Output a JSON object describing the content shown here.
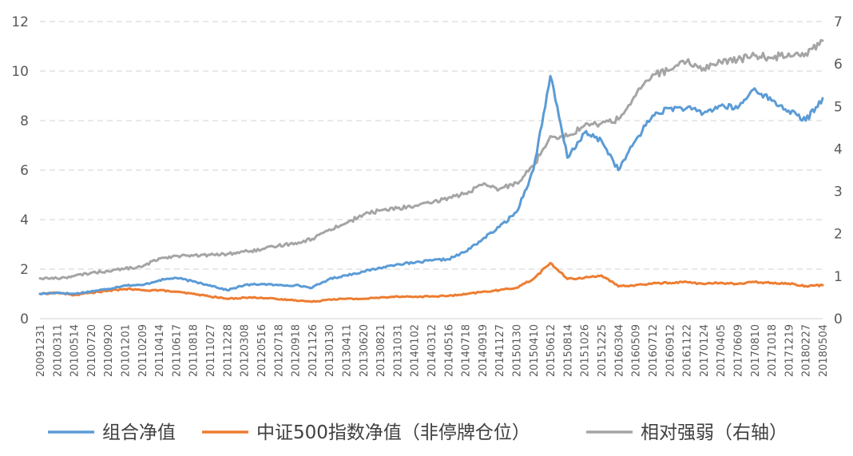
{
  "chart_data": {
    "type": "line",
    "title": "",
    "xlabel": "",
    "ylabel": "",
    "ylim": [
      0,
      12
    ],
    "y2lim": [
      0,
      7
    ],
    "yticks": [
      "0",
      "2",
      "4",
      "6",
      "8",
      "10",
      "12"
    ],
    "y2ticks": [
      "0",
      "1",
      "2",
      "3",
      "4",
      "5",
      "6",
      "7"
    ],
    "grid": "horizontal dashed",
    "legend_position": "bottom",
    "x_ticks": [
      "20091231",
      "20100311",
      "20100514",
      "20100720",
      "20100920",
      "20101201",
      "20110209",
      "20110414",
      "20110617",
      "20110818",
      "20111027",
      "20111228",
      "20120308",
      "20120516",
      "20120718",
      "20120918",
      "20121126",
      "20130130",
      "20130411",
      "20130620",
      "20130821",
      "20131031",
      "20140102",
      "20140312",
      "20140516",
      "20140718",
      "20140919",
      "20141127",
      "20150130",
      "20150410",
      "20150612",
      "20150814",
      "20151026",
      "20151225",
      "20160304",
      "20160509",
      "20160712",
      "20160912",
      "20161122",
      "20170124",
      "20170405",
      "20170609",
      "20170810",
      "20171018",
      "20171219",
      "20180227",
      "20180504"
    ],
    "series": [
      {
        "name": "组合净值",
        "axis": "left",
        "color": "#5B9BD5",
        "values": [
          1.0,
          1.05,
          1.0,
          1.1,
          1.2,
          1.35,
          1.35,
          1.55,
          1.65,
          1.5,
          1.35,
          1.15,
          1.35,
          1.4,
          1.35,
          1.35,
          1.25,
          1.6,
          1.75,
          1.9,
          2.05,
          2.2,
          2.25,
          2.35,
          2.4,
          2.7,
          3.2,
          3.7,
          4.3,
          6.0,
          9.8,
          6.5,
          7.5,
          7.2,
          6.0,
          7.2,
          8.2,
          8.5,
          8.5,
          8.3,
          8.6,
          8.5,
          9.3,
          8.8,
          8.4,
          8.0,
          8.9
        ]
      },
      {
        "name": "中证500指数净值（非停牌仓位）",
        "axis": "left",
        "color": "#ED7D31",
        "values": [
          1.0,
          1.05,
          0.95,
          1.05,
          1.12,
          1.2,
          1.15,
          1.15,
          1.08,
          1.0,
          0.9,
          0.8,
          0.85,
          0.85,
          0.78,
          0.75,
          0.68,
          0.78,
          0.8,
          0.8,
          0.85,
          0.9,
          0.88,
          0.9,
          0.92,
          0.98,
          1.08,
          1.15,
          1.25,
          1.6,
          2.25,
          1.6,
          1.65,
          1.75,
          1.3,
          1.35,
          1.42,
          1.45,
          1.48,
          1.4,
          1.45,
          1.4,
          1.48,
          1.45,
          1.42,
          1.32,
          1.35
        ]
      },
      {
        "name": "相对强弱（右轴）",
        "axis": "right",
        "color": "#A5A5A5",
        "values": [
          0.95,
          0.95,
          1.0,
          1.08,
          1.12,
          1.18,
          1.22,
          1.42,
          1.48,
          1.48,
          1.5,
          1.52,
          1.58,
          1.62,
          1.72,
          1.78,
          1.88,
          2.1,
          2.25,
          2.45,
          2.55,
          2.6,
          2.65,
          2.72,
          2.85,
          2.95,
          3.15,
          3.05,
          3.2,
          3.6,
          4.3,
          4.3,
          4.55,
          4.6,
          4.7,
          5.25,
          5.75,
          5.85,
          6.05,
          5.9,
          6.05,
          6.1,
          6.2,
          6.15,
          6.25,
          6.25,
          6.55
        ]
      }
    ]
  }
}
